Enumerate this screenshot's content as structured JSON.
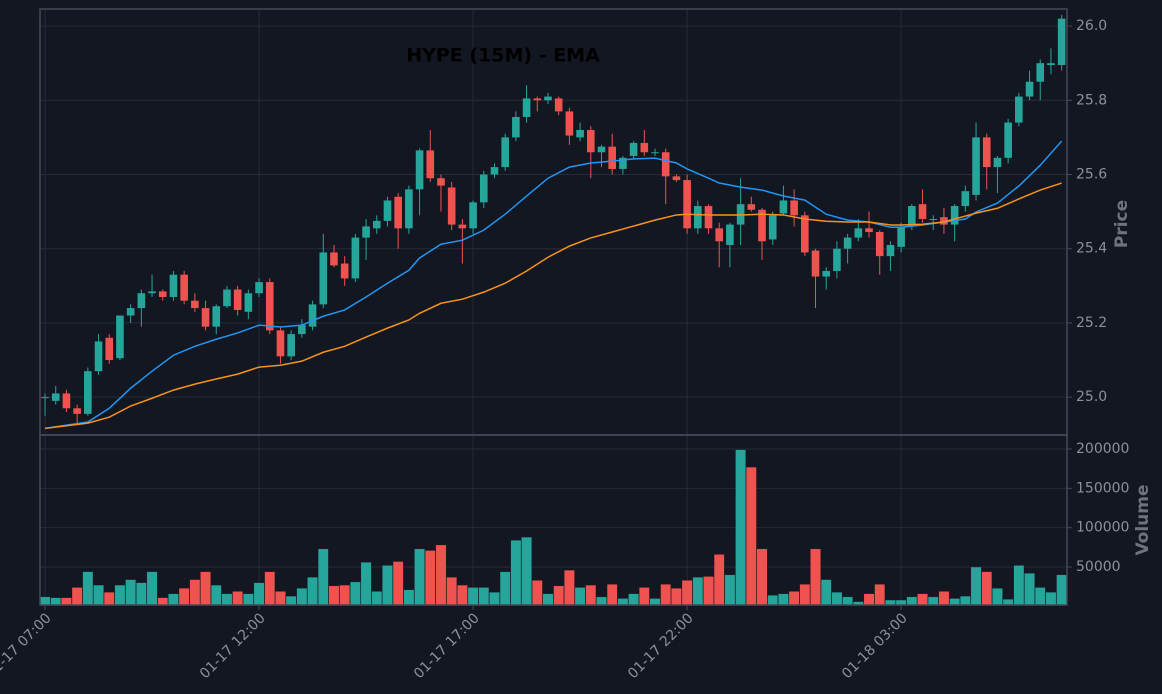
{
  "chart_data": [
    {
      "type": "candlestick",
      "title": "HYPE (15M) - EMA",
      "ylabel": "Price",
      "up_color": "#26a69a",
      "down_color": "#ef5350",
      "open": [
        25.0,
        24.99,
        25.01,
        24.97,
        24.955,
        25.07,
        25.16,
        25.105,
        25.22,
        25.24,
        25.28,
        25.285,
        25.27,
        25.33,
        25.26,
        25.24,
        25.19,
        25.245,
        25.29,
        25.23,
        25.28,
        25.31,
        25.18,
        25.11,
        25.17,
        25.19,
        25.25,
        25.39,
        25.36,
        25.32,
        25.43,
        25.455,
        25.475,
        25.54,
        25.455,
        25.56,
        25.665,
        25.59,
        25.565,
        25.465,
        25.455,
        25.525,
        25.6,
        25.62,
        25.7,
        25.755,
        25.805,
        25.8,
        25.805,
        25.77,
        25.7,
        25.72,
        25.66,
        25.675,
        25.615,
        25.65,
        25.685,
        25.66,
        25.66,
        25.595,
        25.585,
        25.455,
        25.515,
        25.455,
        25.41,
        25.465,
        25.52,
        25.505,
        25.425,
        25.495,
        25.53,
        25.49,
        25.395,
        25.325,
        25.34,
        25.4,
        25.43,
        25.455,
        25.445,
        25.38,
        25.405,
        25.46,
        25.52,
        25.48,
        25.485,
        25.465,
        25.515,
        25.545,
        25.7,
        25.62,
        25.645,
        25.74,
        25.81,
        25.85,
        25.895,
        25.895
      ],
      "high": [
        25.01,
        25.03,
        25.02,
        24.98,
        25.08,
        25.17,
        25.17,
        25.22,
        25.25,
        25.29,
        25.33,
        25.29,
        25.34,
        25.34,
        25.28,
        25.26,
        25.25,
        25.3,
        25.3,
        25.29,
        25.32,
        25.32,
        25.19,
        25.18,
        25.21,
        25.26,
        25.44,
        25.41,
        25.38,
        25.44,
        25.48,
        25.49,
        25.54,
        25.55,
        25.57,
        25.67,
        25.72,
        25.6,
        25.58,
        25.48,
        25.53,
        25.61,
        25.63,
        25.71,
        25.77,
        25.84,
        25.81,
        25.82,
        25.81,
        25.78,
        25.74,
        25.73,
        25.68,
        25.71,
        25.65,
        25.69,
        25.72,
        25.67,
        25.67,
        25.6,
        25.6,
        25.53,
        25.52,
        25.47,
        25.47,
        25.59,
        25.54,
        25.51,
        25.5,
        25.57,
        25.56,
        25.5,
        25.4,
        25.35,
        25.42,
        25.44,
        25.48,
        25.5,
        25.45,
        25.42,
        25.47,
        25.52,
        25.56,
        25.49,
        25.51,
        25.52,
        25.57,
        25.74,
        25.71,
        25.65,
        25.75,
        25.82,
        25.88,
        25.91,
        25.94,
        26.03
      ],
      "low": [
        24.95,
        24.98,
        24.96,
        24.93,
        24.95,
        25.06,
        25.09,
        25.1,
        25.2,
        25.19,
        25.27,
        25.26,
        25.26,
        25.25,
        25.23,
        25.18,
        25.17,
        25.24,
        25.22,
        25.21,
        25.27,
        25.17,
        25.09,
        25.1,
        25.16,
        25.18,
        25.24,
        25.35,
        25.3,
        25.31,
        25.37,
        25.44,
        25.46,
        25.4,
        25.44,
        25.49,
        25.58,
        25.5,
        25.45,
        25.36,
        25.44,
        25.51,
        25.59,
        25.61,
        25.69,
        25.74,
        25.77,
        25.79,
        25.76,
        25.68,
        25.69,
        25.59,
        25.62,
        25.6,
        25.6,
        25.64,
        25.65,
        25.65,
        25.52,
        25.58,
        25.44,
        25.44,
        25.44,
        25.35,
        25.35,
        25.41,
        25.5,
        25.37,
        25.41,
        25.49,
        25.46,
        25.38,
        25.24,
        25.29,
        25.32,
        25.36,
        25.42,
        25.43,
        25.33,
        25.34,
        25.39,
        25.45,
        25.47,
        25.45,
        25.44,
        25.42,
        25.5,
        25.53,
        25.56,
        25.55,
        25.63,
        25.73,
        25.8,
        25.8,
        25.87,
        25.88
      ],
      "close": [
        25.0,
        25.01,
        24.97,
        24.955,
        25.07,
        25.15,
        25.1,
        25.22,
        25.24,
        25.28,
        25.285,
        25.27,
        25.33,
        25.26,
        25.24,
        25.19,
        25.245,
        25.29,
        25.235,
        25.28,
        25.31,
        25.18,
        25.11,
        25.17,
        25.195,
        25.25,
        25.39,
        25.355,
        25.32,
        25.43,
        25.46,
        25.475,
        25.53,
        25.455,
        25.56,
        25.665,
        25.59,
        25.57,
        25.465,
        25.455,
        25.525,
        25.6,
        25.62,
        25.7,
        25.755,
        25.805,
        25.8,
        25.81,
        25.77,
        25.705,
        25.72,
        25.66,
        25.675,
        25.615,
        25.645,
        25.685,
        25.66,
        25.66,
        25.595,
        25.585,
        25.455,
        25.515,
        25.455,
        25.42,
        25.465,
        25.52,
        25.505,
        25.42,
        25.49,
        25.53,
        25.49,
        25.39,
        25.325,
        25.34,
        25.4,
        25.43,
        25.455,
        25.445,
        25.38,
        25.41,
        25.46,
        25.515,
        25.48,
        25.48,
        25.465,
        25.515,
        25.555,
        25.7,
        25.62,
        25.645,
        25.74,
        25.81,
        25.85,
        25.9,
        25.9,
        26.02
      ],
      "lines": [
        {
          "color": "#2196f3",
          "x": [
            0,
            4,
            6,
            8,
            10,
            12,
            14,
            16,
            18,
            20,
            22,
            24,
            26,
            28,
            30,
            32,
            34,
            35,
            37,
            39,
            41,
            43,
            45,
            47,
            49,
            51,
            53,
            55,
            57,
            59,
            60,
            62,
            63,
            65,
            67,
            69,
            71,
            73,
            75,
            77,
            79,
            80,
            82,
            84,
            86,
            87,
            89,
            91,
            93,
            95
          ],
          "values": [
            24.916,
            24.933,
            24.97,
            25.024,
            25.07,
            25.113,
            25.137,
            25.156,
            25.173,
            25.194,
            25.189,
            25.194,
            25.218,
            25.235,
            25.27,
            25.307,
            25.342,
            25.375,
            25.412,
            25.423,
            25.45,
            25.493,
            25.542,
            25.59,
            25.62,
            25.631,
            25.636,
            25.642,
            25.644,
            25.631,
            25.615,
            25.59,
            25.577,
            25.566,
            25.558,
            25.542,
            25.531,
            25.493,
            25.477,
            25.472,
            25.458,
            25.458,
            25.464,
            25.472,
            25.48,
            25.499,
            25.523,
            25.569,
            25.625,
            25.69
          ]
        },
        {
          "color": "#f7931a",
          "x": [
            0,
            4,
            6,
            8,
            10,
            12,
            14,
            16,
            18,
            20,
            22,
            24,
            26,
            28,
            30,
            32,
            34,
            35,
            37,
            39,
            41,
            43,
            45,
            47,
            49,
            51,
            53,
            55,
            57,
            59,
            60,
            62,
            63,
            65,
            67,
            69,
            71,
            73,
            75,
            77,
            79,
            80,
            82,
            84,
            86,
            87,
            89,
            91,
            93,
            95
          ],
          "values": [
            24.916,
            24.93,
            24.946,
            24.976,
            24.997,
            25.019,
            25.035,
            25.049,
            25.062,
            25.081,
            25.086,
            25.097,
            25.121,
            25.137,
            25.162,
            25.186,
            25.208,
            25.226,
            25.253,
            25.264,
            25.283,
            25.307,
            25.34,
            25.377,
            25.407,
            25.429,
            25.445,
            25.461,
            25.477,
            25.491,
            25.493,
            25.491,
            25.491,
            25.491,
            25.493,
            25.491,
            25.48,
            25.474,
            25.472,
            25.472,
            25.464,
            25.464,
            25.466,
            25.472,
            25.488,
            25.496,
            25.509,
            25.534,
            25.558,
            25.577
          ]
        }
      ],
      "xlim": [
        -0.47,
        95.5
      ],
      "ylim": [
        24.898,
        26.046
      ],
      "yticks": [
        {
          "value": 25,
          "label": "25.0"
        },
        25.2,
        25.4,
        25.6,
        25.8,
        {
          "value": 26,
          "label": "26.0"
        }
      ],
      "grid": true
    },
    {
      "type": "bar",
      "ylabel": "Volume",
      "values": [
        12000,
        11000,
        11000,
        24000,
        44000,
        27000,
        18000,
        27000,
        34000,
        30000,
        44000,
        11000,
        16000,
        23000,
        34000,
        44000,
        27000,
        16000,
        19000,
        16000,
        30000,
        44000,
        19000,
        13000,
        23000,
        37000,
        73000,
        26000,
        27000,
        31000,
        56000,
        19000,
        52000,
        57000,
        21000,
        73000,
        71000,
        78000,
        37000,
        27000,
        24000,
        24000,
        18000,
        44000,
        84000,
        88000,
        33000,
        16000,
        26000,
        46000,
        24000,
        27000,
        12000,
        28000,
        10000,
        16000,
        24000,
        10000,
        28000,
        23000,
        33000,
        37000,
        38000,
        66000,
        40000,
        199000,
        177000,
        73000,
        14000,
        16000,
        19000,
        28000,
        73000,
        34000,
        18000,
        12000,
        6000,
        16000,
        28000,
        8000,
        8000,
        12000,
        16000,
        12000,
        19000,
        10000,
        13000,
        50000,
        44000,
        23000,
        9000,
        52000,
        42000,
        24000,
        18000,
        40000
      ],
      "xlim": [
        -0.47,
        95.5
      ],
      "ylim": [
        1700,
        217800
      ],
      "yticks": [
        50000,
        100000,
        150000,
        200000
      ],
      "xticks": [
        {
          "value": 0,
          "label": "01-17 07:00"
        },
        {
          "value": 20,
          "label": "01-17 12:00"
        },
        {
          "value": 40,
          "label": "01-17 17:00"
        },
        {
          "value": 60,
          "label": "01-17 22:00"
        },
        {
          "value": 80,
          "label": "01-18 03:00"
        }
      ],
      "grid": true
    }
  ]
}
